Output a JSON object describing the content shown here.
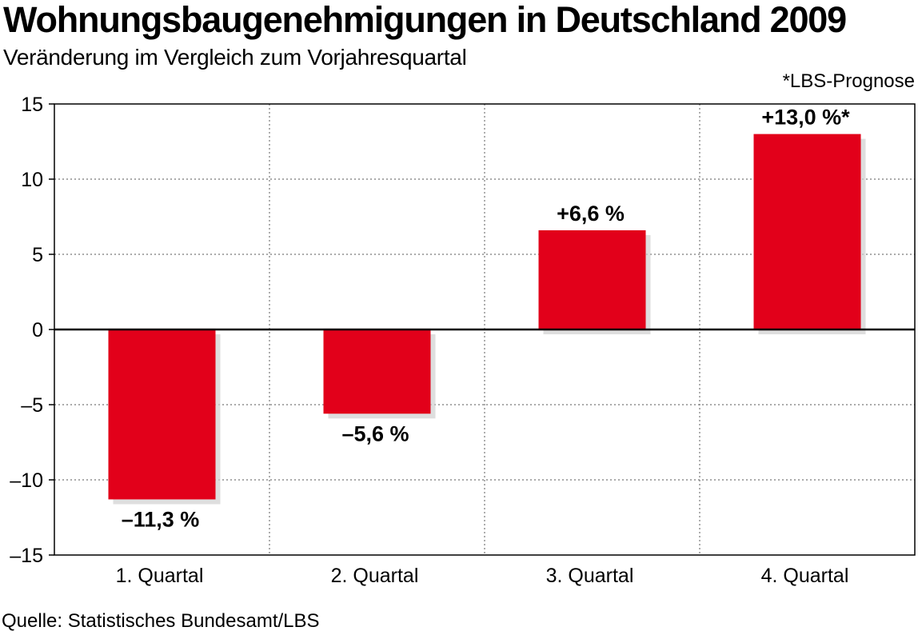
{
  "header": {
    "title": "Wohnungsbaugenehmigungen in Deutschland 2009",
    "subtitle": "Veränderung im Vergleich zum Vorjahresquartal",
    "note": "*LBS-Prognose"
  },
  "footer": {
    "source": "Quelle: Statistisches Bundesamt/LBS"
  },
  "chart_data": {
    "type": "bar",
    "title": "Wohnungsbaugenehmigungen in Deutschland 2009",
    "subtitle": "Veränderung im Vergleich zum Vorjahresquartal",
    "categories": [
      "1. Quartal",
      "2. Quartal",
      "3. Quartal",
      "4. Quartal"
    ],
    "values": [
      -11.3,
      -5.6,
      6.6,
      13.0
    ],
    "data_labels": [
      "–11,3 %",
      "–5,6 %",
      "+6,6 %",
      "+13,0 %*"
    ],
    "ylim": [
      -15,
      15
    ],
    "yticks": [
      15,
      10,
      5,
      0,
      -5,
      -10,
      -15
    ],
    "ytick_labels": [
      "15",
      "10",
      "5",
      "0",
      "–5",
      "–10",
      "–15"
    ],
    "grid": true,
    "bar_color": "#e2001a",
    "annotation": "*LBS-Prognose",
    "source": "Quelle: Statistisches Bundesamt/LBS"
  }
}
